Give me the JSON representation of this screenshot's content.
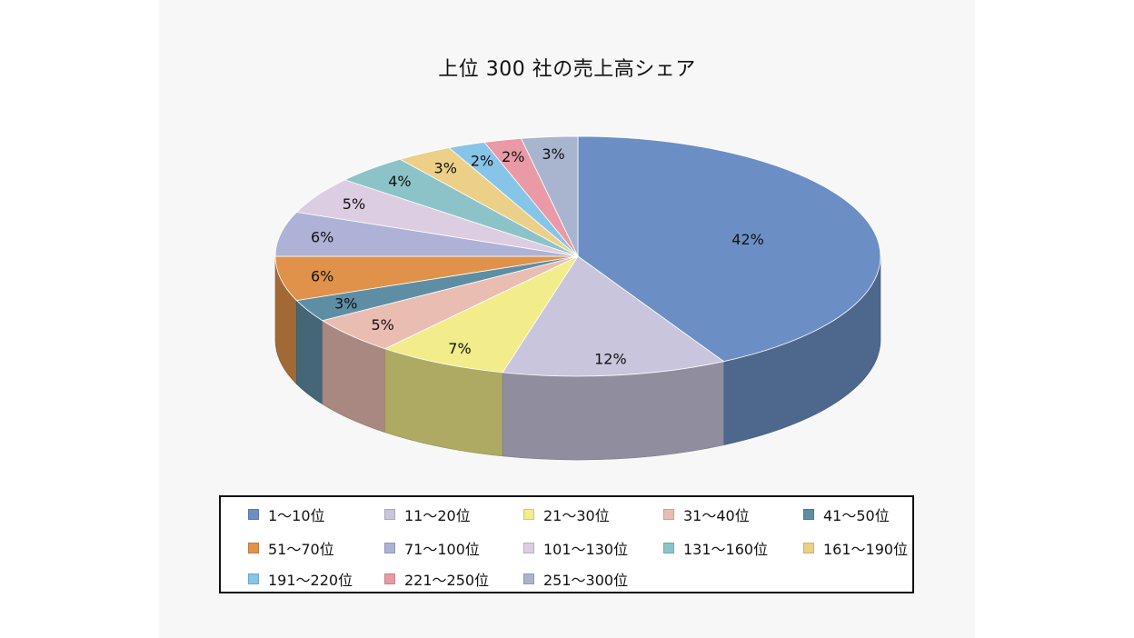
{
  "chart_data": {
    "type": "pie",
    "title": "上位 300 社の売上高シェア",
    "slices": [
      {
        "label": "1〜10位",
        "value": 42,
        "value_label": "42%",
        "color": "#6b8fc4"
      },
      {
        "label": "11〜20位",
        "value": 12,
        "value_label": "12%",
        "color": "#c8c5dc"
      },
      {
        "label": "21〜30位",
        "value": 7,
        "value_label": "7%",
        "color": "#f2ec8a"
      },
      {
        "label": "31〜40位",
        "value": 5,
        "value_label": "5%",
        "color": "#eabdb2"
      },
      {
        "label": "41〜50位",
        "value": 3,
        "value_label": "3%",
        "color": "#5e8ea4"
      },
      {
        "label": "51〜70位",
        "value": 6,
        "value_label": "6%",
        "color": "#e0924a"
      },
      {
        "label": "71〜100位",
        "value": 6,
        "value_label": "6%",
        "color": "#adb2d6"
      },
      {
        "label": "101〜130位",
        "value": 5,
        "value_label": "5%",
        "color": "#dccde3"
      },
      {
        "label": "131〜160位",
        "value": 4,
        "value_label": "4%",
        "color": "#8cc3c8"
      },
      {
        "label": "161〜190位",
        "value": 3,
        "value_label": "3%",
        "color": "#ecd088"
      },
      {
        "label": "191〜220位",
        "value": 2,
        "value_label": "2%",
        "color": "#87c5e8"
      },
      {
        "label": "221〜250位",
        "value": 2,
        "value_label": "2%",
        "color": "#e99aa6"
      },
      {
        "label": "251〜300位",
        "value": 3,
        "value_label": "3%",
        "color": "#a9b5cf"
      }
    ],
    "legend_position": "bottom"
  }
}
